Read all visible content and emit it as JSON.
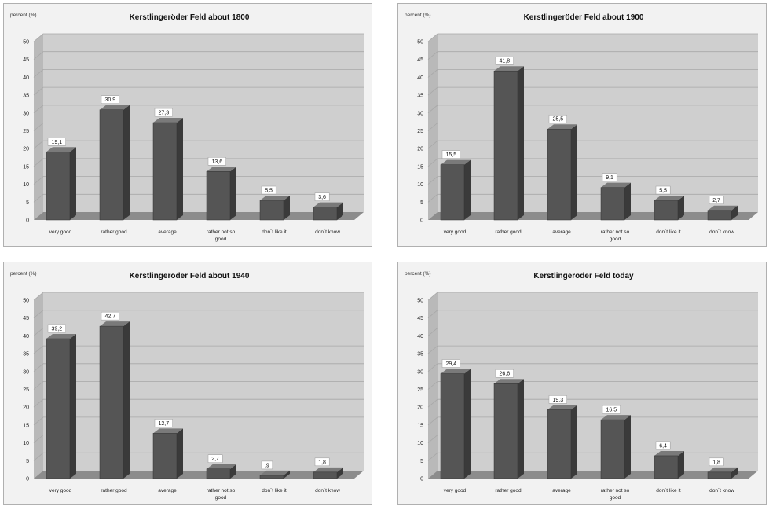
{
  "chart_data": [
    {
      "type": "bar",
      "title": "Kerstlingeröder Feld about 1800",
      "ylabel": "percent (%)",
      "categories": [
        "very good",
        "rather good",
        "average",
        "rather not so good",
        "don´t like it",
        "don´t know"
      ],
      "values": [
        19.1,
        30.9,
        27.3,
        13.6,
        5.5,
        3.6
      ],
      "value_labels": [
        "19,1",
        "30,9",
        "27,3",
        "13,6",
        "5,5",
        "3,6"
      ],
      "yticks": [
        "0",
        "5",
        "10",
        "15",
        "20",
        "25",
        "30",
        "35",
        "40",
        "45",
        "50"
      ],
      "ylim": [
        0,
        50
      ],
      "grid": true
    },
    {
      "type": "bar",
      "title": "Kerstlingeröder Feld about 1900",
      "ylabel": "percent (%)",
      "categories": [
        "very good",
        "rather good",
        "average",
        "rather not so good",
        "don´t like it",
        "don´t know"
      ],
      "values": [
        15.5,
        41.8,
        25.5,
        9.1,
        5.5,
        2.7
      ],
      "value_labels": [
        "15,5",
        "41,8",
        "25,5",
        "9,1",
        "5,5",
        "2,7"
      ],
      "yticks": [
        "0",
        "5",
        "10",
        "15",
        "20",
        "25",
        "30",
        "35",
        "40",
        "45",
        "50"
      ],
      "ylim": [
        0,
        50
      ],
      "grid": true
    },
    {
      "type": "bar",
      "title": "Kerstlingeröder Feld about 1940",
      "ylabel": "percent (%)",
      "categories": [
        "very good",
        "rather good",
        "average",
        "rather not so good",
        "don´t like it",
        "don´t know"
      ],
      "values": [
        39.2,
        42.7,
        12.7,
        2.7,
        0.9,
        1.8
      ],
      "value_labels": [
        "39,2",
        "42,7",
        "12,7",
        "2,7",
        ",9",
        "1,8"
      ],
      "yticks": [
        "0",
        "5",
        "10",
        "15",
        "20",
        "25",
        "30",
        "35",
        "40",
        "45",
        "50"
      ],
      "ylim": [
        0,
        50
      ],
      "grid": true
    },
    {
      "type": "bar",
      "title": "Kerstlingeröder Feld today",
      "ylabel": "percent (%)",
      "categories": [
        "very good",
        "rather good",
        "average",
        "rather not so good",
        "don´t like it",
        "don´t know"
      ],
      "values": [
        29.4,
        26.6,
        19.3,
        16.5,
        6.4,
        1.8
      ],
      "value_labels": [
        "29,4",
        "26,6",
        "19,3",
        "16,5",
        "6,4",
        "1,8"
      ],
      "yticks": [
        "0",
        "5",
        "10",
        "15",
        "20",
        "25",
        "30",
        "35",
        "40",
        "45",
        "50"
      ],
      "ylim": [
        0,
        50
      ],
      "grid": true
    }
  ],
  "colors": {
    "bar_front": "#555555",
    "bar_side": "#3a3a3a",
    "bar_top": "#7a7a7a",
    "floor": "#8c8c8c",
    "wall": "#cfcfcf",
    "grid": "#a8a8a8"
  }
}
